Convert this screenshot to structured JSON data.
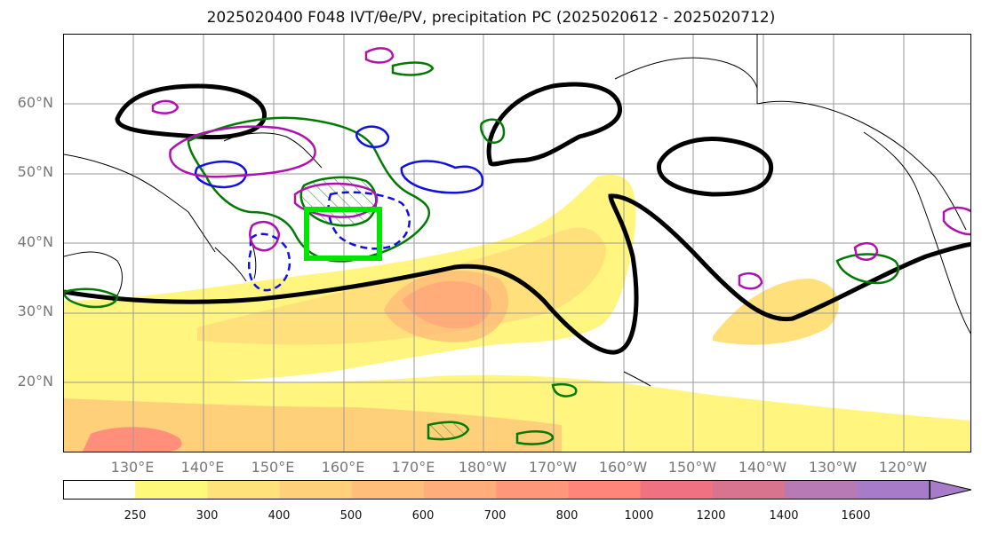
{
  "title": "2025020400 F048 IVT/θe/PV, precipitation PC (2025020612 - 2025020712)",
  "map": {
    "lat_labels": [
      "60°N",
      "50°N",
      "40°N",
      "30°N",
      "20°N"
    ],
    "lon_labels": [
      "130°E",
      "140°E",
      "150°E",
      "160°E",
      "170°E",
      "180°W",
      "170°W",
      "160°W",
      "150°W",
      "140°W",
      "130°W",
      "120°W"
    ]
  },
  "colorbar": {
    "ticks": [
      "250",
      "300",
      "400",
      "500",
      "600",
      "700",
      "800",
      "1000",
      "1200",
      "1400",
      "1600"
    ],
    "colors": [
      "#ffffff",
      "#fff97a",
      "#ffe27a",
      "#ffd07a",
      "#ffbf7a",
      "#ffad7a",
      "#ff987a",
      "#ff857a",
      "#f07280",
      "#d9748f",
      "#b77ab4",
      "#a77bc8"
    ]
  },
  "legend_colors": {
    "ivt_fill": "#ffd87a",
    "theta_e_contour": "#000000",
    "pv_positive": "#1010e0",
    "pv_negative": "#b010b0",
    "precip_contour": "#007a00",
    "target_box": "#00e600"
  }
}
